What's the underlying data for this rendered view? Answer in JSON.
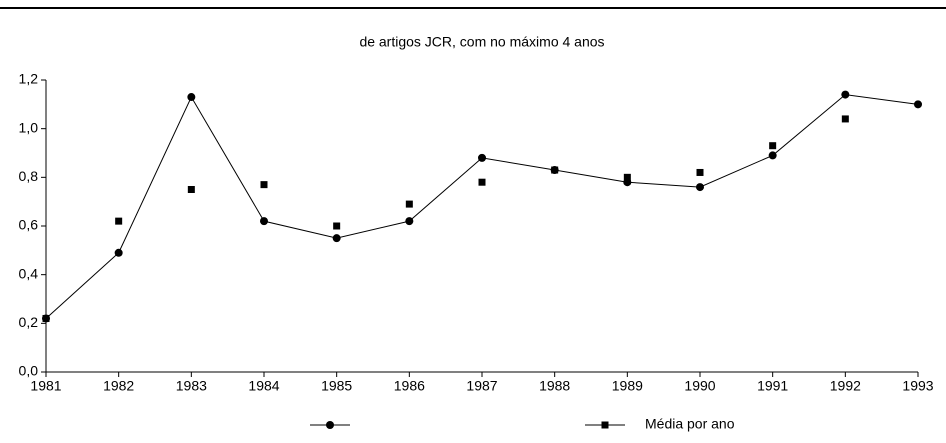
{
  "chart_data": {
    "type": "line",
    "title": "de artigos JCR, com no máximo 4 anos",
    "x": [
      1981,
      1982,
      1983,
      1984,
      1985,
      1986,
      1987,
      1988,
      1989,
      1990,
      1991,
      1992,
      1993
    ],
    "series": [
      {
        "color": "#000000",
        "marker": "circle",
        "line": true,
        "values": [
          0.22,
          0.49,
          1.13,
          0.62,
          0.55,
          0.62,
          0.88,
          0.83,
          0.78,
          0.76,
          0.89,
          1.14,
          1.1
        ]
      },
      {
        "name": "Média por ano",
        "color": "#000000",
        "marker": "square",
        "line": false,
        "values": [
          0.22,
          0.62,
          0.75,
          0.77,
          0.6,
          0.69,
          0.78,
          0.83,
          0.8,
          0.82,
          0.93,
          1.04,
          null
        ]
      }
    ],
    "xlim": [
      1981,
      1993
    ],
    "xticks": [
      1981,
      1982,
      1983,
      1984,
      1985,
      1986,
      1987,
      1988,
      1989,
      1990,
      1991,
      1992,
      1993
    ],
    "ylim": [
      0,
      1.2
    ],
    "yticks": [
      {
        "value": 0,
        "label": "0,0"
      },
      {
        "value": 0.2,
        "label": "0,2"
      },
      {
        "value": 0.4,
        "label": "0,4"
      },
      {
        "value": 0.6,
        "label": "0,6"
      },
      {
        "value": 0.8,
        "label": "0,8"
      },
      {
        "value": 1.0,
        "label": "1,0"
      },
      {
        "value": 1.2,
        "label": "1,2"
      }
    ],
    "legend": "bottom"
  }
}
